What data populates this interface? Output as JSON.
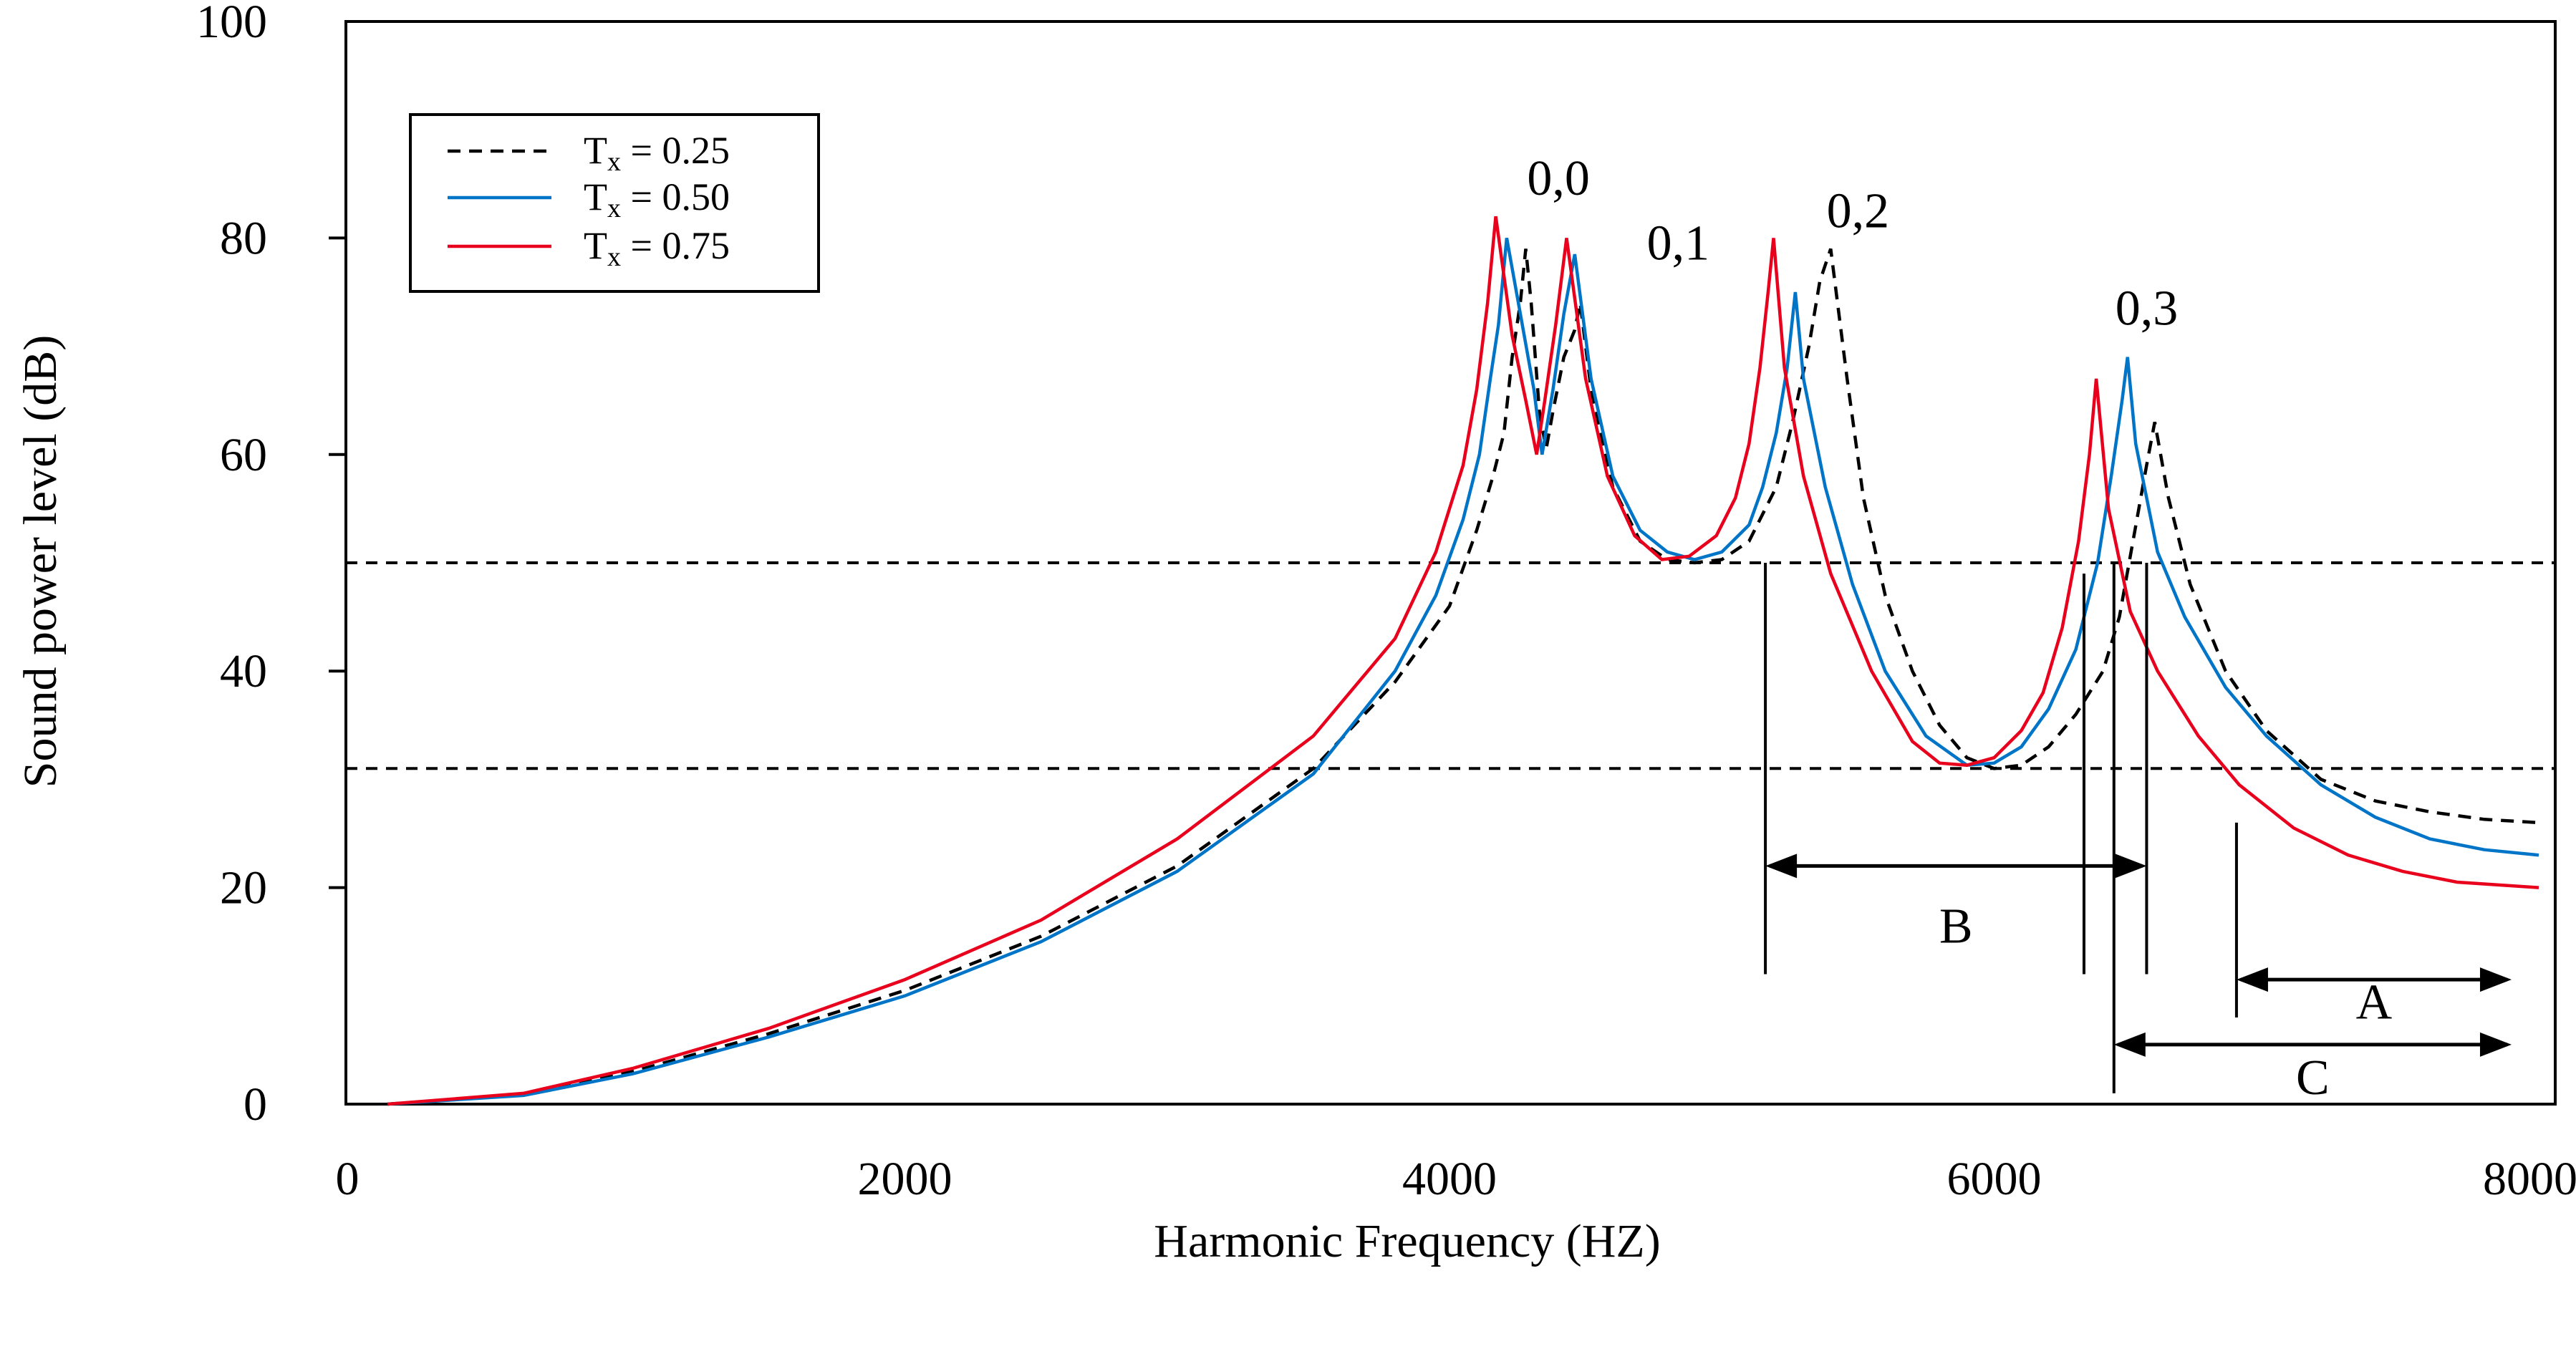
{
  "chart_data": {
    "type": "line",
    "title": "",
    "xlabel": "Harmonic Frequency (HZ)",
    "ylabel": "Sound power level (dB)",
    "xlim": [
      0,
      8000
    ],
    "ylim": [
      0,
      100
    ],
    "x_tick_values": [
      0,
      2000,
      4000,
      6000,
      8000
    ],
    "x_tick_labels": [
      "0",
      "2000",
      "4000",
      "6000",
      "8000"
    ],
    "y_tick_values": [
      0,
      20,
      40,
      60,
      80,
      100
    ],
    "y_tick_labels": [
      "0",
      "20",
      "40",
      "60",
      "80",
      "100"
    ],
    "legend_position": "top-left",
    "grid": false,
    "series": [
      {
        "name": "T",
        "subscript": "x",
        "value_text": " = 0.25",
        "color": "#000000",
        "dash": "dashed",
        "points": [
          [
            100,
            0
          ],
          [
            600,
            0.9
          ],
          [
            1000,
            3
          ],
          [
            1500,
            6.5
          ],
          [
            2000,
            10.5
          ],
          [
            2500,
            15.5
          ],
          [
            3000,
            22
          ],
          [
            3500,
            31
          ],
          [
            3800,
            39
          ],
          [
            4000,
            46
          ],
          [
            4100,
            53
          ],
          [
            4160,
            58
          ],
          [
            4200,
            62
          ],
          [
            4230,
            69
          ],
          [
            4260,
            74
          ],
          [
            4280,
            79
          ],
          [
            4300,
            74
          ],
          [
            4330,
            64
          ],
          [
            4355,
            60.5
          ],
          [
            4380,
            64
          ],
          [
            4420,
            69
          ],
          [
            4460,
            71.5
          ],
          [
            4480,
            74
          ],
          [
            4520,
            66
          ],
          [
            4600,
            57
          ],
          [
            4700,
            52
          ],
          [
            4800,
            50.3
          ],
          [
            4900,
            50
          ],
          [
            5000,
            50.3
          ],
          [
            5100,
            52
          ],
          [
            5200,
            57
          ],
          [
            5260,
            63
          ],
          [
            5320,
            70
          ],
          [
            5360,
            76
          ],
          [
            5400,
            79
          ],
          [
            5460,
            67
          ],
          [
            5520,
            56
          ],
          [
            5600,
            47
          ],
          [
            5700,
            40
          ],
          [
            5800,
            35
          ],
          [
            5900,
            32
          ],
          [
            6000,
            31
          ],
          [
            6100,
            31.3
          ],
          [
            6200,
            33
          ],
          [
            6300,
            36
          ],
          [
            6400,
            40
          ],
          [
            6460,
            45
          ],
          [
            6510,
            52
          ],
          [
            6560,
            59
          ],
          [
            6590,
            63
          ],
          [
            6640,
            56
          ],
          [
            6720,
            48
          ],
          [
            6850,
            40
          ],
          [
            7000,
            34.5
          ],
          [
            7200,
            30
          ],
          [
            7400,
            28
          ],
          [
            7600,
            27
          ],
          [
            7800,
            26.3
          ],
          [
            8000,
            26
          ]
        ]
      },
      {
        "name": "T",
        "subscript": "x",
        "value_text": " = 0.50",
        "color": "#0075c8",
        "dash": "solid",
        "points": [
          [
            100,
            0
          ],
          [
            600,
            0.8
          ],
          [
            1000,
            2.8
          ],
          [
            1500,
            6.2
          ],
          [
            2000,
            10
          ],
          [
            2500,
            15
          ],
          [
            3000,
            21.5
          ],
          [
            3500,
            30.5
          ],
          [
            3800,
            40
          ],
          [
            3950,
            47
          ],
          [
            4050,
            54
          ],
          [
            4110,
            60
          ],
          [
            4150,
            67
          ],
          [
            4180,
            72
          ],
          [
            4210,
            80
          ],
          [
            4260,
            73
          ],
          [
            4310,
            66
          ],
          [
            4340,
            60
          ],
          [
            4380,
            66
          ],
          [
            4420,
            73
          ],
          [
            4460,
            78.5
          ],
          [
            4520,
            67
          ],
          [
            4600,
            58
          ],
          [
            4700,
            53
          ],
          [
            4800,
            51
          ],
          [
            4900,
            50.3
          ],
          [
            5000,
            51
          ],
          [
            5100,
            53.5
          ],
          [
            5150,
            57
          ],
          [
            5200,
            62
          ],
          [
            5240,
            68
          ],
          [
            5270,
            75
          ],
          [
            5300,
            67
          ],
          [
            5380,
            57
          ],
          [
            5480,
            48
          ],
          [
            5600,
            40
          ],
          [
            5750,
            34
          ],
          [
            5900,
            31.3
          ],
          [
            6000,
            31.5
          ],
          [
            6100,
            33
          ],
          [
            6200,
            36.5
          ],
          [
            6300,
            42
          ],
          [
            6380,
            50
          ],
          [
            6430,
            58
          ],
          [
            6470,
            65
          ],
          [
            6490,
            69
          ],
          [
            6520,
            61
          ],
          [
            6600,
            51
          ],
          [
            6700,
            45
          ],
          [
            6850,
            38.5
          ],
          [
            7000,
            34
          ],
          [
            7200,
            29.5
          ],
          [
            7400,
            26.5
          ],
          [
            7600,
            24.5
          ],
          [
            7800,
            23.5
          ],
          [
            8000,
            23
          ]
        ]
      },
      {
        "name": "T",
        "subscript": "x",
        "value_text": " = 0.75",
        "color": "#e8001c",
        "dash": "solid",
        "points": [
          [
            100,
            0
          ],
          [
            600,
            1
          ],
          [
            1000,
            3.3
          ],
          [
            1500,
            7
          ],
          [
            2000,
            11.5
          ],
          [
            2500,
            17
          ],
          [
            3000,
            24.5
          ],
          [
            3500,
            34
          ],
          [
            3800,
            43
          ],
          [
            3950,
            51
          ],
          [
            4050,
            59
          ],
          [
            4100,
            66
          ],
          [
            4140,
            74
          ],
          [
            4170,
            82
          ],
          [
            4230,
            71
          ],
          [
            4280,
            65
          ],
          [
            4320,
            60
          ],
          [
            4350,
            65
          ],
          [
            4390,
            72
          ],
          [
            4430,
            80
          ],
          [
            4500,
            67
          ],
          [
            4580,
            58
          ],
          [
            4680,
            52.5
          ],
          [
            4780,
            50.3
          ],
          [
            4880,
            50.6
          ],
          [
            4980,
            52.5
          ],
          [
            5050,
            56
          ],
          [
            5100,
            61
          ],
          [
            5140,
            68
          ],
          [
            5170,
            75
          ],
          [
            5190,
            80
          ],
          [
            5230,
            68
          ],
          [
            5300,
            58
          ],
          [
            5400,
            49
          ],
          [
            5550,
            40
          ],
          [
            5700,
            33.5
          ],
          [
            5800,
            31.5
          ],
          [
            5900,
            31.3
          ],
          [
            6000,
            32
          ],
          [
            6100,
            34.5
          ],
          [
            6180,
            38
          ],
          [
            6250,
            44
          ],
          [
            6310,
            52
          ],
          [
            6350,
            60
          ],
          [
            6375,
            67
          ],
          [
            6420,
            55
          ],
          [
            6500,
            45.5
          ],
          [
            6600,
            40
          ],
          [
            6750,
            34
          ],
          [
            6900,
            29.5
          ],
          [
            7100,
            25.5
          ],
          [
            7300,
            23
          ],
          [
            7500,
            21.5
          ],
          [
            7700,
            20.5
          ],
          [
            8000,
            20
          ]
        ]
      }
    ],
    "threshold_lines": [
      50,
      31
    ],
    "peak_labels": [
      {
        "text": "0,0",
        "x": 4400,
        "y": 84
      },
      {
        "text": "0,1",
        "x": 4840,
        "y": 78
      },
      {
        "text": "0,2",
        "x": 5500,
        "y": 81
      },
      {
        "text": "0,3",
        "x": 6560,
        "y": 72
      }
    ],
    "reference_verticals": [
      {
        "x": 5160,
        "y_from": 12,
        "y_to": 50
      },
      {
        "x": 6330,
        "y_from": 12,
        "y_to": 49
      },
      {
        "x": 6560,
        "y_from": 12,
        "y_to": 50
      },
      {
        "x": 6890,
        "y_from": 8,
        "y_to": 26
      },
      {
        "x": 6440,
        "y_from": 1,
        "y_to": 50
      }
    ],
    "range_annotations": [
      {
        "label": "B",
        "x_start": 5160,
        "x_end": 6560,
        "y": 22,
        "label_y": 16.5
      },
      {
        "label": "A",
        "x_start": 6890,
        "x_end": 7900,
        "y": 11.5,
        "label_y": 9.5
      },
      {
        "label": "C",
        "x_start": 6440,
        "x_end": 7900,
        "y": 5.5,
        "label_y": 2.5
      }
    ]
  }
}
